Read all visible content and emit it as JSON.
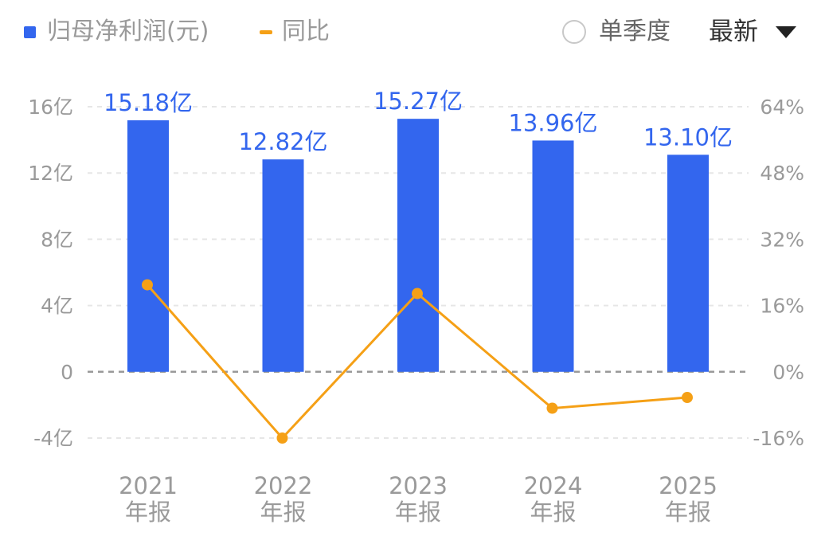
{
  "legend": {
    "bar_label": "归母净利润(元)",
    "line_label": "同比",
    "season_label": "单季度",
    "period_label": "最新"
  },
  "colors": {
    "bar": "#3366ee",
    "line": "#f5a016",
    "grid": "#e6e6e6",
    "zero_line": "#999999",
    "axis_text": "#9a9a9a"
  },
  "chart_data": {
    "type": "bar",
    "categories": [
      "2021\n年报",
      "2022\n年报",
      "2023\n年报",
      "2024\n年报",
      "2025\n年报"
    ],
    "x_years": [
      "2021",
      "2022",
      "2023",
      "2024",
      "2025"
    ],
    "x_sub": [
      "年报",
      "年报",
      "年报",
      "年报",
      "年报"
    ],
    "series": [
      {
        "type": "bar",
        "axis": "left",
        "values": [
          15.18,
          12.82,
          15.27,
          13.96,
          13.1
        ],
        "labels": [
          "15.18亿",
          "12.82亿",
          "15.27亿",
          "13.96亿",
          "13.10亿"
        ]
      },
      {
        "type": "line",
        "axis": "right",
        "values": [
          21.0,
          -16.0,
          18.9,
          -8.8,
          -6.2
        ]
      }
    ],
    "left_axis": {
      "ylim": [
        -4,
        16
      ],
      "ticks": [
        16,
        12,
        8,
        4,
        0,
        -4
      ],
      "tick_labels": [
        "16亿",
        "12亿",
        "8亿",
        "4亿",
        "0",
        "-4亿"
      ]
    },
    "right_axis": {
      "ylim": [
        -16,
        64
      ],
      "ticks": [
        64,
        48,
        32,
        16,
        0,
        -16
      ],
      "tick_labels": [
        "64%",
        "48%",
        "32%",
        "16%",
        "0%",
        "-16%"
      ]
    },
    "grid": true
  }
}
